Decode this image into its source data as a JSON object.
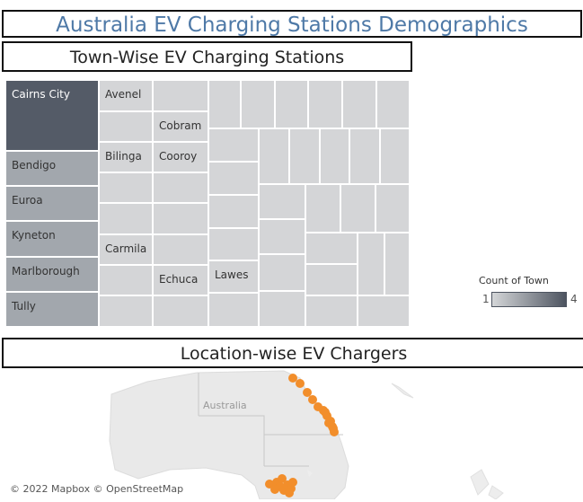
{
  "dashboard": {
    "title": "Australia EV Charging Stations Demographics"
  },
  "treemap": {
    "title": "Town-Wise EV Charging Stations",
    "labels": {
      "cairns": "Cairns City",
      "bendigo": "Bendigo",
      "euroa": "Euroa",
      "kyneton": "Kyneton",
      "marlborough": "Marlborough",
      "tully": "Tully",
      "avenel": "Avenel",
      "bilinga": "Bilinga",
      "carmila": "Carmila",
      "cobram": "Cobram",
      "cooroy": "Cooroy",
      "echuca": "Echuca",
      "lawes": "Lawes"
    },
    "colors": {
      "count_4": "#545b67",
      "count_2": "#a2a7ad",
      "count_1": "#d4d5d7"
    }
  },
  "legend": {
    "title": "Count of Town",
    "min": "1",
    "max": "4"
  },
  "map": {
    "title": "Location-wise EV Chargers",
    "region_label": "Australia",
    "credit": "© 2022 Mapbox © OpenStreetMap",
    "marker_color": "#f28e2b"
  }
}
